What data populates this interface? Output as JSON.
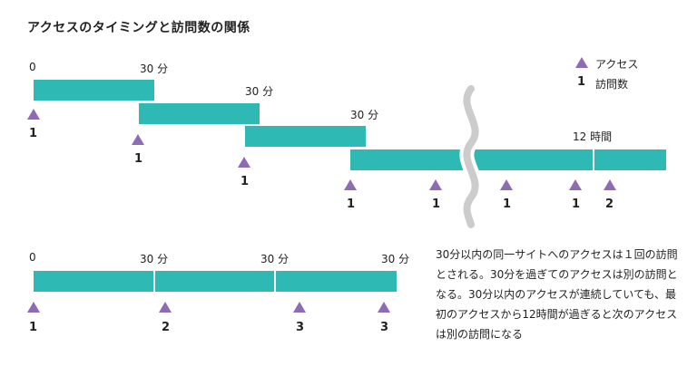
{
  "title": "アクセスのタイミングと訪問数の関係",
  "legend": {
    "access": "アクセス",
    "visit_symbol": "1",
    "visit": "訪問数"
  },
  "top": {
    "labels": {
      "zero": "0",
      "min30_a": "30 分",
      "min30_b": "30 分",
      "min30_c": "30 分",
      "hour12": "12 時間"
    },
    "counts": [
      "1",
      "1",
      "1",
      "1",
      "1",
      "1",
      "1",
      "2"
    ]
  },
  "bottom": {
    "labels": {
      "zero": "0",
      "min30_a": "30 分",
      "min30_b": "30 分",
      "min30_c": "30 分"
    },
    "counts": [
      "1",
      "2",
      "3",
      "3"
    ]
  },
  "description": "30分以内の同一サイトへのアクセスは１回の訪問とされる。30分を過ぎてのアクセスは別の訪問となる。30分以内のアクセスが連続していても、最初のアクセスから12時間が過ぎると次のアクセスは別の訪問になる",
  "colors": {
    "bar": "#2fb9b5",
    "marker": "#8e6bb5",
    "break": "#cccccc"
  }
}
